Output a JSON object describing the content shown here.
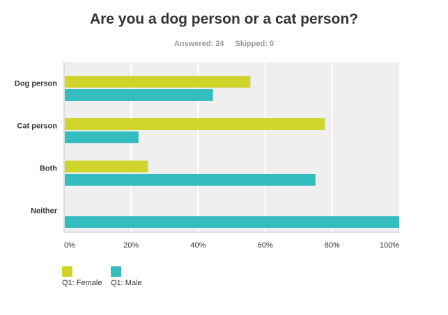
{
  "chart_data": {
    "type": "bar",
    "orientation": "horizontal",
    "title": "Are you a dog person or a cat person?",
    "answered": "Answered: 24",
    "skipped": "Skipped: 0",
    "categories": [
      "Dog person",
      "Cat person",
      "Both",
      "Neither"
    ],
    "series": [
      {
        "name": "Q1: Female",
        "color": "#cfd52a",
        "values": [
          55.6,
          77.8,
          25,
          0
        ]
      },
      {
        "name": "Q1: Male",
        "color": "#33bdbf",
        "values": [
          44.4,
          22.2,
          75,
          100
        ]
      }
    ],
    "xlim": [
      0,
      100
    ],
    "xticks": [
      "0%",
      "20%",
      "40%",
      "60%",
      "80%",
      "100%"
    ],
    "grid": true,
    "legend": "bottom-left"
  }
}
